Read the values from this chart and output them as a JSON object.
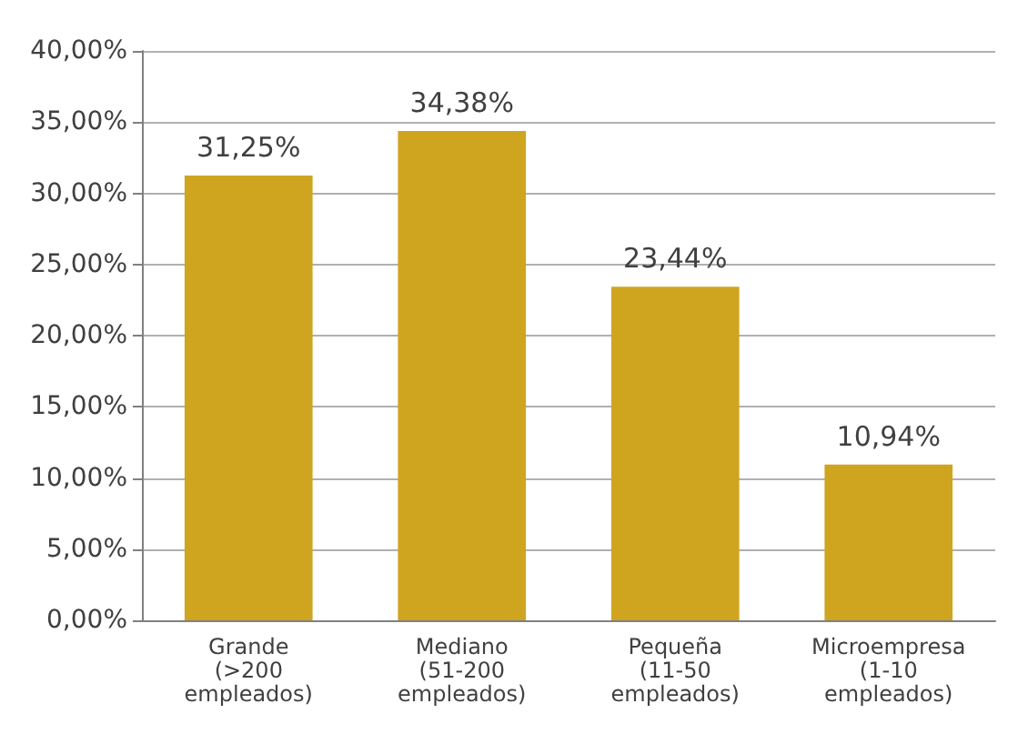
{
  "chart_data": {
    "type": "bar",
    "categories": [
      "Grande\n(>200\nempleados)",
      "Mediano\n(51-200\nempleados)",
      "Pequeña\n(11-50\nempleados)",
      "Microempresa\n(1-10\nempleados)"
    ],
    "values": [
      31.25,
      34.38,
      23.44,
      10.94
    ],
    "value_labels": [
      "31,25%",
      "34,38%",
      "23,44%",
      "10,94%"
    ],
    "color": "#cfa520",
    "ylim": [
      0,
      40
    ],
    "yticks": [
      {
        "value": 0,
        "label": "0,00%"
      },
      {
        "value": 5,
        "label": "5,00%"
      },
      {
        "value": 10,
        "label": "10,00%"
      },
      {
        "value": 15,
        "label": "15,00%"
      },
      {
        "value": 20,
        "label": "20,00%"
      },
      {
        "value": 25,
        "label": "25,00%"
      },
      {
        "value": 30,
        "label": "30,00%"
      },
      {
        "value": 35,
        "label": "35,00%"
      },
      {
        "value": 40,
        "label": "40,00%"
      }
    ],
    "grid": "y"
  }
}
